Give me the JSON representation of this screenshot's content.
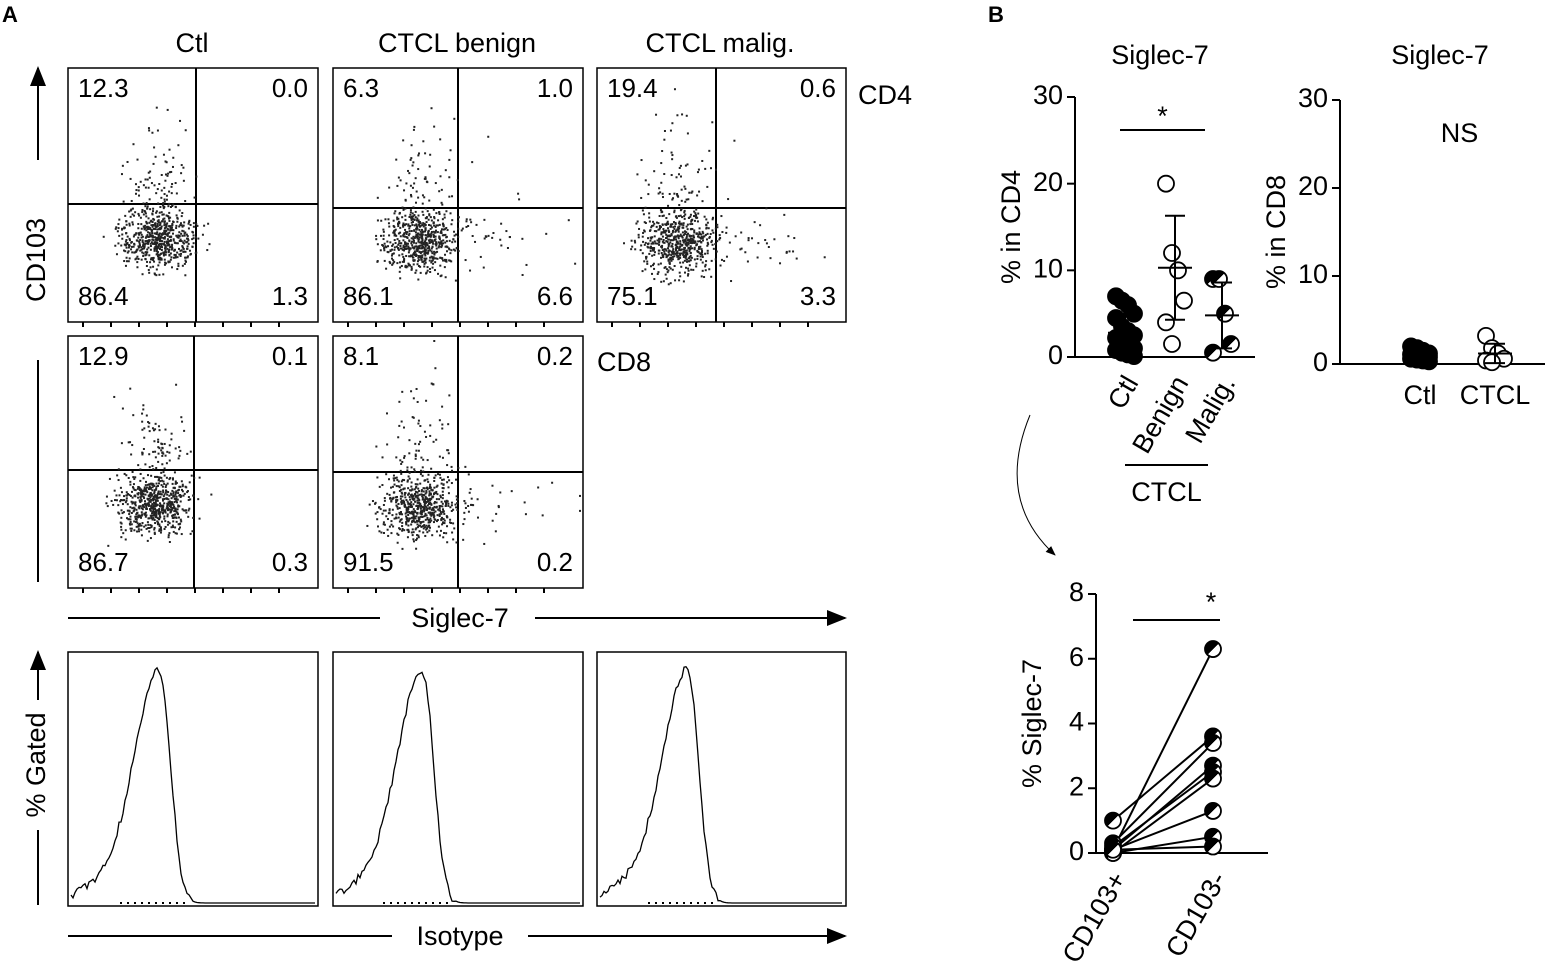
{
  "panel_a": {
    "label": "A",
    "columns": [
      "Ctl",
      "CTCL benign",
      "CTCL malig."
    ],
    "rows": [
      "CD4",
      "CD8"
    ],
    "y_axis": "CD103",
    "x_axis": "Siglec-7",
    "hist_y_axis": "% Gated",
    "hist_x_axis": "Isotype",
    "plots": [
      {
        "quadrants": [
          "12.3",
          "0.0",
          "86.4",
          "1.3"
        ]
      },
      {
        "quadrants": [
          "6.3",
          "1.0",
          "86.1",
          "6.6"
        ]
      },
      {
        "quadrants": [
          "19.4",
          "0.6",
          "75.1",
          "3.3"
        ]
      },
      {
        "quadrants": [
          "12.9",
          "0.1",
          "86.7",
          "0.3"
        ]
      },
      {
        "quadrants": [
          "8.1",
          "0.2",
          "91.5",
          "0.2"
        ]
      }
    ]
  },
  "panel_b": {
    "label": "B"
  },
  "chart_data": [
    {
      "type": "dot",
      "title": "Siglec-7",
      "ylabel": "% in CD4",
      "ylim": [
        0,
        30
      ],
      "yticks": [
        0,
        10,
        20,
        30
      ],
      "annotation": "*",
      "group_label": "CTCL",
      "groups": [
        {
          "name": "Ctl",
          "marker": "filled",
          "mean": 2.8,
          "sd": 2.2,
          "points": [
            7,
            6.5,
            6,
            5,
            4.5,
            3.5,
            3,
            2.5,
            2.2,
            2,
            1.5,
            1,
            0.8,
            0.5,
            0.3,
            0.1
          ]
        },
        {
          "name": "Benign",
          "marker": "open",
          "mean": 10.3,
          "sd": 6,
          "points": [
            20,
            12,
            10,
            6.5,
            4,
            1.5
          ]
        },
        {
          "name": "Malig.",
          "marker": "half",
          "mean": 4.8,
          "sd": 3.8,
          "points": [
            9,
            9,
            5,
            1.5,
            0.5
          ]
        }
      ]
    },
    {
      "type": "dot",
      "title": "Siglec-7",
      "ylabel": "% in CD8",
      "ylim": [
        0,
        30
      ],
      "yticks": [
        0,
        10,
        20,
        30
      ],
      "annotation": "NS",
      "groups": [
        {
          "name": "Ctl",
          "marker": "filled",
          "mean": 0.9,
          "sd": 0.6,
          "points": [
            2,
            1.8,
            1.5,
            1.2,
            1.1,
            1,
            0.9,
            0.8,
            0.6,
            0.5,
            0.4,
            0.3
          ]
        },
        {
          "name": "CTCL",
          "marker": "open",
          "mean": 1.2,
          "sd": 1.1,
          "points": [
            3.2,
            1.8,
            1.2,
            0.6,
            0.4,
            0.2
          ]
        }
      ]
    },
    {
      "type": "paired",
      "ylabel": "% Siglec-7",
      "ylim": [
        0,
        8
      ],
      "yticks": [
        0,
        2,
        4,
        6,
        8
      ],
      "annotation": "*",
      "groups": [
        {
          "name": "CD103+",
          "marker": "half",
          "points": [
            0.1,
            1.0,
            0.3,
            0.1,
            0.2,
            0.0,
            0.1,
            0.0,
            0.1
          ]
        },
        {
          "name": "CD103-",
          "marker": "half",
          "points": [
            6.3,
            3.6,
            3.4,
            2.7,
            2.5,
            2.3,
            1.3,
            0.5,
            0.2
          ]
        }
      ]
    }
  ]
}
